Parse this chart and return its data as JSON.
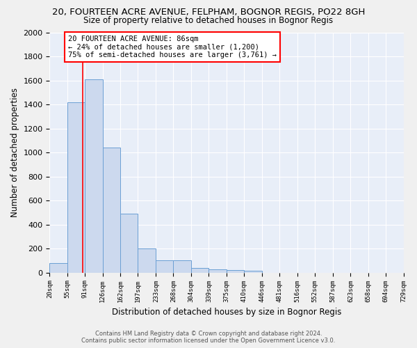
{
  "title1": "20, FOURTEEN ACRE AVENUE, FELPHAM, BOGNOR REGIS, PO22 8GH",
  "title2": "Size of property relative to detached houses in Bognor Regis",
  "xlabel": "Distribution of detached houses by size in Bognor Regis",
  "ylabel": "Number of detached properties",
  "footer1": "Contains HM Land Registry data © Crown copyright and database right 2024.",
  "footer2": "Contains public sector information licensed under the Open Government Licence v3.0.",
  "bar_edges": [
    20,
    55,
    91,
    126,
    162,
    197,
    233,
    268,
    304,
    339,
    375,
    410,
    446,
    481,
    516,
    552,
    587,
    623,
    658,
    694,
    729
  ],
  "bar_heights": [
    80,
    1420,
    1610,
    1040,
    490,
    200,
    100,
    100,
    40,
    25,
    20,
    15,
    0,
    0,
    0,
    0,
    0,
    0,
    0,
    0
  ],
  "bar_color": "#ccd9ee",
  "bar_edge_color": "#6b9fd4",
  "red_line_x": 86,
  "ylim": [
    0,
    2000
  ],
  "annotation_text": "20 FOURTEEN ACRE AVENUE: 86sqm\n← 24% of detached houses are smaller (1,200)\n75% of semi-detached houses are larger (3,761) →",
  "background_color": "#e8eef8",
  "grid_color": "#ffffff",
  "fig_bg": "#f0f0f0"
}
